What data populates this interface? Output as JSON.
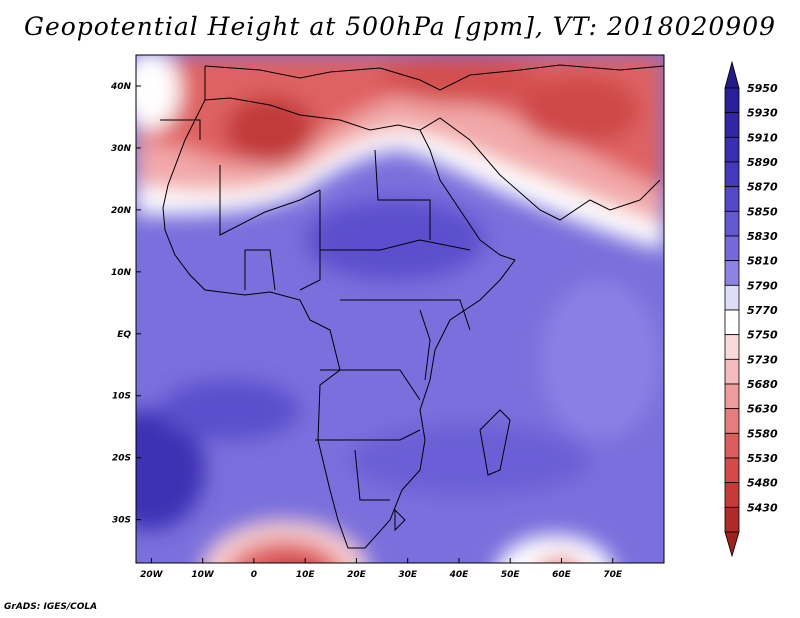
{
  "title": "Geopotential Height at 500hPa [gpm], VT: 2018020909",
  "credit": "GrADS: IGES/COLA",
  "map": {
    "lon_range": [
      -23,
      80
    ],
    "lat_range": [
      -37,
      45
    ],
    "x_ticks": [
      {
        "value": -20,
        "label": "20W"
      },
      {
        "value": -10,
        "label": "10W"
      },
      {
        "value": 0,
        "label": "0"
      },
      {
        "value": 10,
        "label": "10E"
      },
      {
        "value": 20,
        "label": "20E"
      },
      {
        "value": 30,
        "label": "30E"
      },
      {
        "value": 40,
        "label": "40E"
      },
      {
        "value": 50,
        "label": "50E"
      },
      {
        "value": 60,
        "label": "60E"
      },
      {
        "value": 70,
        "label": "70E"
      }
    ],
    "y_ticks": [
      {
        "value": 40,
        "label": "40N"
      },
      {
        "value": 30,
        "label": "30N"
      },
      {
        "value": 20,
        "label": "20N"
      },
      {
        "value": 10,
        "label": "10N"
      },
      {
        "value": 0,
        "label": "EQ"
      },
      {
        "value": -10,
        "label": "10S"
      },
      {
        "value": -20,
        "label": "20S"
      },
      {
        "value": -30,
        "label": "30S"
      }
    ]
  },
  "colorbar": {
    "levels": [
      {
        "label": "5950",
        "color": "#2a1f9c"
      },
      {
        "label": "5930",
        "color": "#3325a8"
      },
      {
        "label": "5910",
        "color": "#3a2eb4"
      },
      {
        "label": "5890",
        "color": "#4538bf"
      },
      {
        "label": "5870",
        "color": "#5448c9"
      },
      {
        "label": "5850",
        "color": "#6357d2"
      },
      {
        "label": "5830",
        "color": "#7569da"
      },
      {
        "label": "5810",
        "color": "#8c83e4"
      },
      {
        "label": "5790",
        "color": "#ddddf8"
      },
      {
        "label": "5770",
        "color": "#ffffff"
      },
      {
        "label": "5750",
        "color": "#f9dada"
      },
      {
        "label": "5730",
        "color": "#f4bcbc"
      },
      {
        "label": "5680",
        "color": "#ee9b9b"
      },
      {
        "label": "5630",
        "color": "#e67c7c"
      },
      {
        "label": "5580",
        "color": "#dd5d5d"
      },
      {
        "label": "5530",
        "color": "#d44a4a"
      },
      {
        "label": "5480",
        "color": "#c63a3a"
      },
      {
        "label": "5430",
        "color": "#b12a2a"
      }
    ],
    "top_arrow_color": "#241a8a",
    "bottom_arrow_color": "#a01f1f"
  }
}
